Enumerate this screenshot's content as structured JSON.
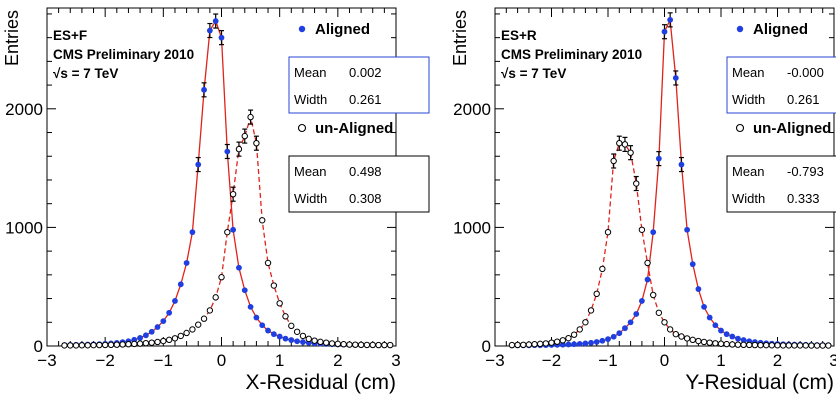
{
  "chart_data": [
    {
      "type": "scatter",
      "xlabel": "X-Residual (cm)",
      "ylabel": "Entries",
      "xlim": [
        -3,
        3
      ],
      "ylim": [
        0,
        2850
      ],
      "x_ticks": [
        -3,
        -2,
        -1,
        0,
        1,
        2,
        3
      ],
      "y_ticks": [
        0,
        1000,
        2000
      ],
      "annotation": [
        "ES+F",
        "CMS Preliminary 2010",
        "√s = 7 TeV"
      ],
      "series": [
        {
          "name": "Aligned",
          "marker": "filled-circle",
          "color": "#1f3fe0",
          "fit_color": "#e0231c",
          "fit_style": "solid",
          "stats": [
            {
              "label": "Mean",
              "value": "0.002"
            },
            {
              "label": "Width",
              "value": "0.261"
            }
          ],
          "x": [
            -2.7,
            -2.6,
            -2.5,
            -2.4,
            -2.3,
            -2.2,
            -2.1,
            -2.0,
            -1.9,
            -1.8,
            -1.7,
            -1.6,
            -1.5,
            -1.4,
            -1.3,
            -1.2,
            -1.1,
            -1.0,
            -0.9,
            -0.8,
            -0.7,
            -0.6,
            -0.5,
            -0.4,
            -0.3,
            -0.2,
            -0.1,
            0.0,
            0.1,
            0.2,
            0.3,
            0.4,
            0.5,
            0.6,
            0.7,
            0.8,
            0.9,
            1.0,
            1.1,
            1.2,
            1.3,
            1.4,
            1.5,
            1.6,
            1.7,
            1.8,
            1.9,
            2.0,
            2.1,
            2.2,
            2.3,
            2.4,
            2.5,
            2.6,
            2.7,
            2.8,
            2.9
          ],
          "y": [
            8,
            9,
            10,
            11,
            12,
            14,
            16,
            19,
            22,
            26,
            32,
            40,
            52,
            68,
            90,
            120,
            160,
            210,
            280,
            380,
            520,
            700,
            960,
            1530,
            2160,
            2660,
            2740,
            2600,
            1640,
            980,
            660,
            470,
            330,
            240,
            175,
            130,
            100,
            80,
            62,
            50,
            40,
            33,
            27,
            23,
            20,
            17,
            15,
            13,
            12,
            11,
            10,
            9,
            8,
            8,
            7,
            7,
            7
          ]
        },
        {
          "name": "un-Aligned",
          "marker": "open-circle",
          "color": "#000000",
          "fit_color": "#e0231c",
          "fit_style": "dashed",
          "stats": [
            {
              "label": "Mean",
              "value": "0.498"
            },
            {
              "label": "Width",
              "value": "0.308"
            }
          ],
          "x": [
            -2.7,
            -2.6,
            -2.5,
            -2.4,
            -2.3,
            -2.2,
            -2.1,
            -2.0,
            -1.9,
            -1.8,
            -1.7,
            -1.6,
            -1.5,
            -1.4,
            -1.3,
            -1.2,
            -1.1,
            -1.0,
            -0.9,
            -0.8,
            -0.7,
            -0.6,
            -0.5,
            -0.4,
            -0.3,
            -0.2,
            -0.1,
            0.0,
            0.1,
            0.2,
            0.3,
            0.4,
            0.5,
            0.6,
            0.7,
            0.8,
            0.9,
            1.0,
            1.1,
            1.2,
            1.3,
            1.4,
            1.5,
            1.6,
            1.7,
            1.8,
            1.9,
            2.0,
            2.1,
            2.2,
            2.3,
            2.4,
            2.5,
            2.6,
            2.7,
            2.8,
            2.9
          ],
          "y": [
            5,
            5,
            5,
            6,
            6,
            7,
            8,
            9,
            10,
            11,
            13,
            15,
            17,
            20,
            24,
            28,
            34,
            42,
            52,
            65,
            85,
            110,
            140,
            180,
            230,
            300,
            410,
            580,
            960,
            1280,
            1660,
            1770,
            1930,
            1710,
            1060,
            700,
            510,
            360,
            250,
            170,
            120,
            85,
            60,
            45,
            35,
            28,
            22,
            18,
            15,
            12,
            11,
            10,
            9,
            9,
            8,
            8,
            8
          ]
        }
      ]
    },
    {
      "type": "scatter",
      "xlabel": "Y-Residual (cm)",
      "ylabel": "Entries",
      "xlim": [
        -3,
        3
      ],
      "ylim": [
        0,
        2850
      ],
      "x_ticks": [
        -3,
        -2,
        -1,
        0,
        1,
        2,
        3
      ],
      "y_ticks": [
        0,
        1000,
        2000
      ],
      "annotation": [
        "ES+R",
        "CMS Preliminary 2010",
        "√s = 7 TeV"
      ],
      "series": [
        {
          "name": "Aligned",
          "marker": "filled-circle",
          "color": "#1f3fe0",
          "fit_color": "#e0231c",
          "fit_style": "solid",
          "stats": [
            {
              "label": "Mean",
              "value": "-0.000"
            },
            {
              "label": "Width",
              "value": "0.261"
            }
          ],
          "x": [
            -2.7,
            -2.6,
            -2.5,
            -2.4,
            -2.3,
            -2.2,
            -2.1,
            -2.0,
            -1.9,
            -1.8,
            -1.7,
            -1.6,
            -1.5,
            -1.4,
            -1.3,
            -1.2,
            -1.1,
            -1.0,
            -0.9,
            -0.8,
            -0.7,
            -0.6,
            -0.5,
            -0.4,
            -0.3,
            -0.2,
            -0.1,
            0.0,
            0.1,
            0.2,
            0.3,
            0.4,
            0.5,
            0.6,
            0.7,
            0.8,
            0.9,
            1.0,
            1.1,
            1.2,
            1.3,
            1.4,
            1.5,
            1.6,
            1.7,
            1.8,
            1.9,
            2.0,
            2.1,
            2.2,
            2.3,
            2.4,
            2.5,
            2.6,
            2.7,
            2.8,
            2.9
          ],
          "y": [
            5,
            5,
            6,
            6,
            7,
            7,
            8,
            9,
            10,
            11,
            13,
            15,
            18,
            22,
            27,
            34,
            44,
            58,
            78,
            108,
            150,
            200,
            270,
            380,
            560,
            960,
            1580,
            2650,
            2750,
            2260,
            1530,
            980,
            690,
            480,
            330,
            240,
            175,
            130,
            100,
            80,
            62,
            50,
            40,
            33,
            27,
            23,
            20,
            17,
            15,
            13,
            12,
            11,
            10,
            9,
            8,
            8,
            7
          ]
        },
        {
          "name": "un-Aligned",
          "marker": "open-circle",
          "color": "#000000",
          "fit_color": "#e0231c",
          "fit_style": "dashed",
          "stats": [
            {
              "label": "Mean",
              "value": "-0.793"
            },
            {
              "label": "Width",
              "value": "0.333"
            }
          ],
          "x": [
            -2.7,
            -2.6,
            -2.5,
            -2.4,
            -2.3,
            -2.2,
            -2.1,
            -2.0,
            -1.9,
            -1.8,
            -1.7,
            -1.6,
            -1.5,
            -1.4,
            -1.3,
            -1.2,
            -1.1,
            -1.0,
            -0.9,
            -0.8,
            -0.7,
            -0.6,
            -0.5,
            -0.4,
            -0.3,
            -0.2,
            -0.1,
            0.0,
            0.1,
            0.2,
            0.3,
            0.4,
            0.5,
            0.6,
            0.7,
            0.8,
            0.9,
            1.0,
            1.1,
            1.2,
            1.3,
            1.4,
            1.5,
            1.6,
            1.7,
            1.8,
            1.9,
            2.0,
            2.1,
            2.2,
            2.3,
            2.4,
            2.5,
            2.6,
            2.7,
            2.8,
            2.9
          ],
          "y": [
            8,
            9,
            10,
            12,
            15,
            18,
            22,
            28,
            36,
            48,
            66,
            95,
            140,
            200,
            300,
            440,
            650,
            960,
            1560,
            1710,
            1700,
            1630,
            1370,
            980,
            700,
            430,
            280,
            200,
            140,
            100,
            80,
            64,
            52,
            42,
            34,
            28,
            23,
            19,
            16,
            13,
            11,
            10,
            9,
            8,
            7,
            7,
            6,
            6,
            5,
            5,
            5,
            5,
            5,
            4,
            4,
            4,
            4
          ]
        }
      ]
    }
  ]
}
